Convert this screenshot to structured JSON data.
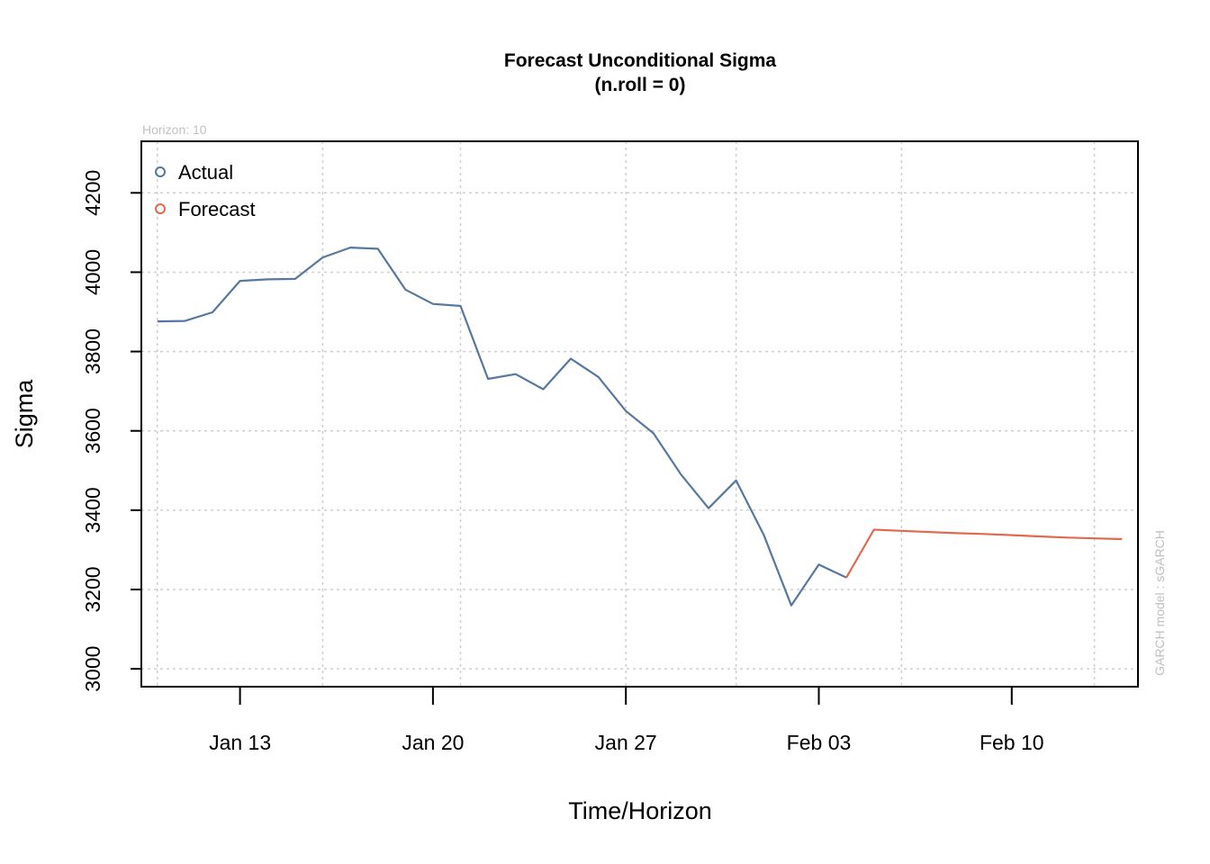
{
  "chart_data": {
    "type": "line",
    "title": "Forecast Unconditional Sigma",
    "subtitle": "(n.roll = 0)",
    "xlabel": "Time/Horizon",
    "ylabel": "Sigma",
    "horizon_note": "Horizon: 10",
    "model_note": "GARCH model :  sGARCH",
    "ylim": [
      2955,
      4330
    ],
    "xlim": [
      "2020-01-09",
      "2020-02-14"
    ],
    "grid": true,
    "legend_position": "top-left",
    "x_ticks": [
      {
        "date": "2020-01-13",
        "label": "Jan 13"
      },
      {
        "date": "2020-01-20",
        "label": "Jan 20"
      },
      {
        "date": "2020-01-27",
        "label": "Jan 27"
      },
      {
        "date": "2020-02-03",
        "label": "Feb 03"
      },
      {
        "date": "2020-02-10",
        "label": "Feb 10"
      }
    ],
    "y_ticks": [
      3000,
      3200,
      3400,
      3600,
      3800,
      4000,
      4200
    ],
    "x_grid_dates": [
      "2020-01-10",
      "2020-01-16",
      "2020-01-21",
      "2020-01-27",
      "2020-01-31",
      "2020-02-06",
      "2020-02-13"
    ],
    "series": [
      {
        "name": "Actual",
        "color": "#56789f",
        "x": [
          "2020-01-10",
          "2020-01-11",
          "2020-01-12",
          "2020-01-13",
          "2020-01-14",
          "2020-01-15",
          "2020-01-16",
          "2020-01-17",
          "2020-01-18",
          "2020-01-19",
          "2020-01-20",
          "2020-01-21",
          "2020-01-22",
          "2020-01-23",
          "2020-01-24",
          "2020-01-25",
          "2020-01-26",
          "2020-01-27",
          "2020-01-28",
          "2020-01-29",
          "2020-01-30",
          "2020-01-31",
          "2020-02-01",
          "2020-02-02",
          "2020-02-03",
          "2020-02-04"
        ],
        "y": [
          3876,
          3877,
          3899,
          3978,
          3982,
          3983,
          4037,
          4062,
          4059,
          3956,
          3920,
          3915,
          3731,
          3743,
          3705,
          3782,
          3736,
          3650,
          3594,
          3490,
          3405,
          3475,
          3338,
          3160,
          3263,
          3230
        ]
      },
      {
        "name": "Forecast",
        "color": "#e06a4e",
        "x": [
          "2020-02-04",
          "2020-02-05",
          "2020-02-06",
          "2020-02-07",
          "2020-02-08",
          "2020-02-09",
          "2020-02-10",
          "2020-02-11",
          "2020-02-12",
          "2020-02-13",
          "2020-02-14"
        ],
        "y": [
          3230,
          3351,
          3348,
          3345,
          3342,
          3340,
          3337,
          3334,
          3331,
          3329,
          3327
        ]
      }
    ]
  }
}
